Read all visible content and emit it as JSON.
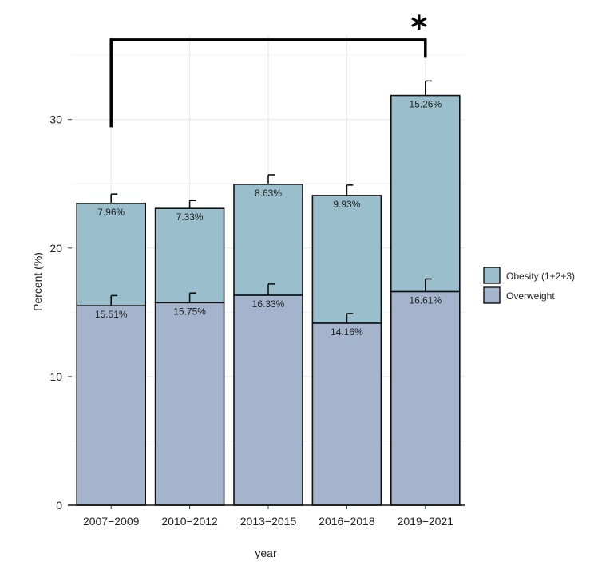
{
  "chart_data": {
    "type": "bar",
    "stacked": true,
    "title": "",
    "xlabel": "year",
    "ylabel": "Percent (%)",
    "ylim": [
      0,
      36.5
    ],
    "yticks": [
      0,
      10,
      20,
      30
    ],
    "grid": true,
    "legend_position": "right",
    "categories": [
      "2007−2009",
      "2010−2012",
      "2013−2015",
      "2016−2018",
      "2019−2021"
    ],
    "series": [
      {
        "name": "Overweight",
        "color": "#a4b4cc",
        "values": [
          15.51,
          15.75,
          16.33,
          14.16,
          16.61
        ],
        "labels": [
          "15.51%",
          "15.75%",
          "16.33%",
          "14.16%",
          "16.61%"
        ],
        "error_upper": [
          16.3,
          16.5,
          17.2,
          14.9,
          17.6
        ]
      },
      {
        "name": "Obesity (1+2+3)",
        "color": "#9bbecc",
        "values": [
          7.96,
          7.33,
          8.63,
          9.93,
          15.26
        ],
        "labels": [
          "7.96%",
          "7.33%",
          "8.63%",
          "9.93%",
          "15.26%"
        ],
        "error_upper": [
          24.2,
          23.7,
          25.7,
          24.9,
          33.0
        ]
      }
    ],
    "legend_order": [
      "Obesity (1+2+3)",
      "Overweight"
    ],
    "annotation": {
      "text": "*",
      "from_category": 0,
      "to_category": 4,
      "bracket_y": 36.2,
      "left_end_y": 29.4,
      "right_end_y": 34.8
    }
  }
}
